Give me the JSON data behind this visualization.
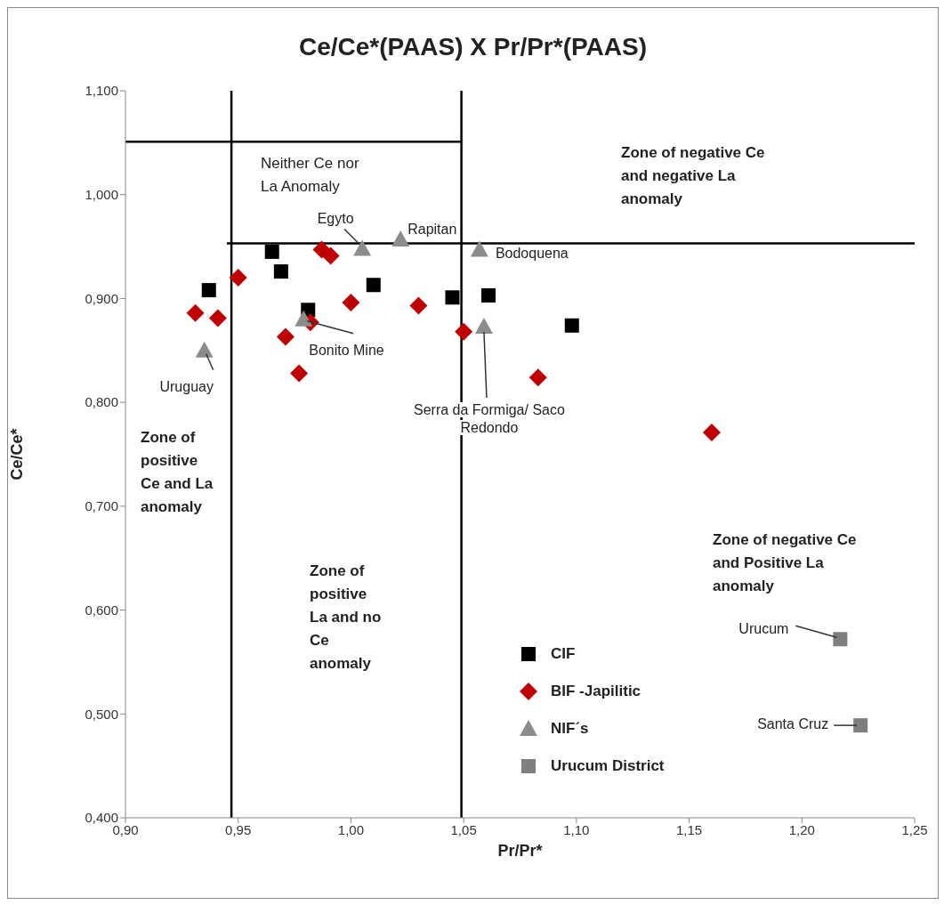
{
  "chart_data": {
    "type": "scatter",
    "title": "Ce/Ce*(PAAS) X Pr/Pr*(PAAS)",
    "xlabel": "Pr/Pr*",
    "ylabel": "Ce/Ce*",
    "xlim": [
      0.9,
      1.25
    ],
    "xticks": [
      {
        "value": 0.9,
        "label": "0,90"
      },
      {
        "value": 0.95,
        "label": "0,95"
      },
      {
        "value": 1.0,
        "label": "1,00"
      },
      {
        "value": 1.05,
        "label": "1,05"
      },
      {
        "value": 1.1,
        "label": "1,10"
      },
      {
        "value": 1.15,
        "label": "1,15"
      },
      {
        "value": 1.2,
        "label": "1,20"
      },
      {
        "value": 1.25,
        "label": "1,25"
      }
    ],
    "ylim": [
      0.4,
      1.1
    ],
    "yticks": [
      {
        "value": 0.4,
        "label": "0,400"
      },
      {
        "value": 0.5,
        "label": "0,500"
      },
      {
        "value": 0.6,
        "label": "0,600"
      },
      {
        "value": 0.7,
        "label": "0,700"
      },
      {
        "value": 0.8,
        "label": "0,800"
      },
      {
        "value": 0.9,
        "label": "0,900"
      },
      {
        "value": 1.0,
        "label": "1,000"
      },
      {
        "value": 1.1,
        "label": "1,100"
      }
    ],
    "grid": false,
    "legend": "bottom",
    "line_style": "solid",
    "series": [
      {
        "name": "CIF",
        "color": "#000000",
        "marker": "square",
        "x": [
          0.937,
          0.965,
          0.969,
          0.981,
          1.01,
          1.045,
          1.061,
          1.098
        ],
        "values": [
          0.908,
          0.945,
          0.926,
          0.889,
          0.913,
          0.901,
          0.903,
          0.874
        ]
      },
      {
        "name": "BIF -Japilitic",
        "color": "#c00000",
        "marker": "diamond",
        "x": [
          0.931,
          0.941,
          0.95,
          0.971,
          0.977,
          0.982,
          0.987,
          0.991,
          1.0,
          1.03,
          1.05,
          1.083,
          1.16
        ],
        "values": [
          0.886,
          0.881,
          0.92,
          0.863,
          0.828,
          0.877,
          0.947,
          0.941,
          0.896,
          0.893,
          0.868,
          0.824,
          0.771
        ]
      },
      {
        "name": "NIF´s",
        "color": "#8c8c8c",
        "marker": "triangle",
        "x": [
          0.935,
          0.979,
          1.005,
          1.022,
          1.057,
          1.059
        ],
        "values": [
          0.85,
          0.88,
          0.948,
          0.957,
          0.947,
          0.873
        ]
      },
      {
        "name": "Urucum District",
        "color": "#7f7f7f",
        "marker": "square",
        "x": [
          1.217,
          1.226
        ],
        "values": [
          0.572,
          0.489
        ]
      },
      {
        "type": "line",
        "color": "#000000",
        "marker": "none",
        "x": [
          0.947,
          0.947
        ],
        "values": [
          1.1,
          0.4
        ]
      },
      {
        "type": "line",
        "color": "#000000",
        "marker": "none",
        "x": [
          1.049,
          1.049
        ],
        "values": [
          1.1,
          0.4
        ]
      },
      {
        "type": "line",
        "color": "#000000",
        "marker": "none",
        "x": [
          0.9,
          1.049
        ],
        "values": [
          1.051,
          1.051
        ]
      },
      {
        "type": "line",
        "color": "#000000",
        "marker": "none",
        "x": [
          0.945,
          1.25
        ],
        "values": [
          0.953,
          0.953
        ]
      }
    ],
    "annotations": [
      "Neither Ce nor La Anomaly",
      "Zone of negative Ce and negative La anomaly",
      "Zone of positive Ce and La anomaly",
      "Zone of positive La and no Ce anomaly",
      "Zone of negative Ce and Positive La anomaly",
      {
        "text": "Egyto",
        "x": 1.005,
        "y": 0.948
      },
      {
        "text": "Rapitan",
        "x": 1.022,
        "y": 0.957
      },
      {
        "text": "Bodoquena",
        "x": 1.057,
        "y": 0.947
      },
      {
        "text": "Bonito Mine",
        "x": 0.979,
        "y": 0.88
      },
      {
        "text": "Uruguay",
        "x": 0.935,
        "y": 0.85
      },
      {
        "text": "Serra da Formiga/ Saco Redondo",
        "x": 1.059,
        "y": 0.873
      },
      {
        "text": "Urucum",
        "x": 1.217,
        "y": 0.572
      },
      {
        "text": "Santa Cruz",
        "x": 1.226,
        "y": 0.489
      }
    ]
  }
}
